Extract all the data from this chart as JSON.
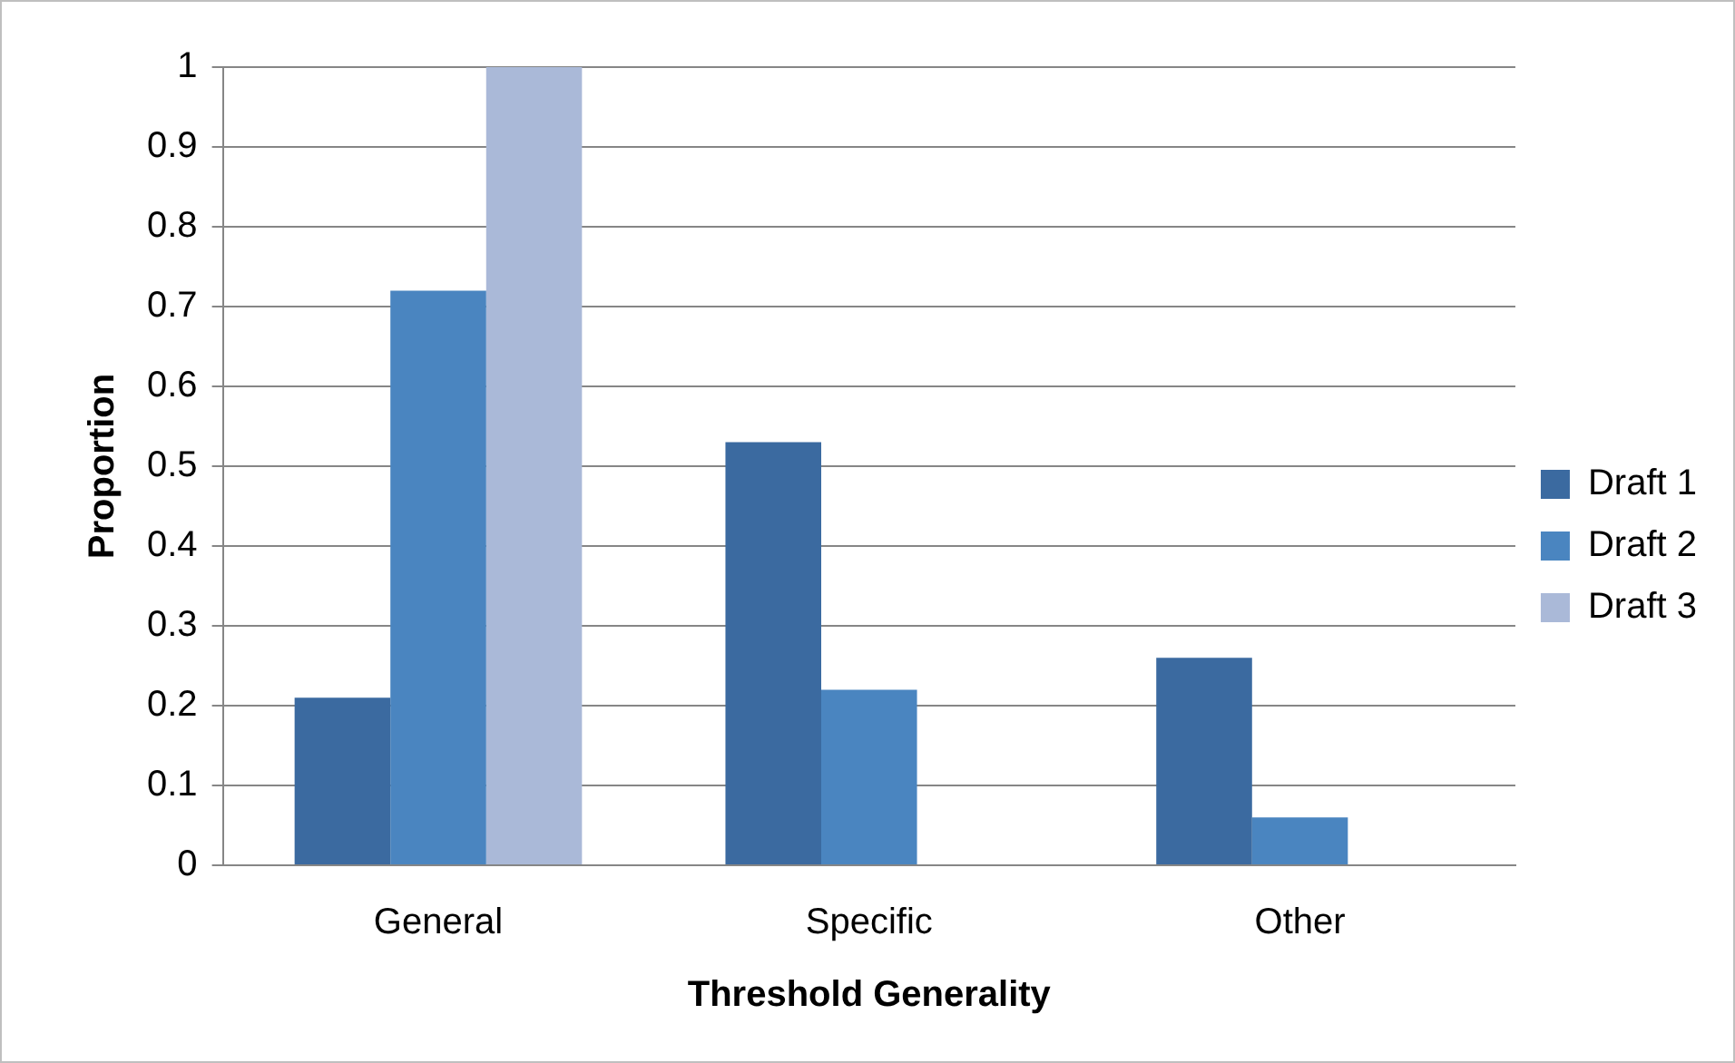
{
  "chart_data": {
    "type": "bar",
    "xlabel": "Threshold Generality",
    "ylabel": "Proportion",
    "categories": [
      "General",
      "Specific",
      "Other"
    ],
    "series": [
      {
        "name": "Draft 1",
        "color": "#3b6aa0",
        "values": [
          0.21,
          0.53,
          0.26
        ]
      },
      {
        "name": "Draft 2",
        "color": "#4a85c0",
        "values": [
          0.72,
          0.22,
          0.06
        ]
      },
      {
        "name": "Draft 3",
        "color": "#aab9d8",
        "values": [
          1,
          0,
          0
        ]
      }
    ],
    "ylim": [
      0,
      1
    ],
    "yticks": [
      0,
      0.1,
      0.2,
      0.3,
      0.4,
      0.5,
      0.6,
      0.7,
      0.8,
      0.9,
      1
    ],
    "grid": "y",
    "legend": "right"
  }
}
